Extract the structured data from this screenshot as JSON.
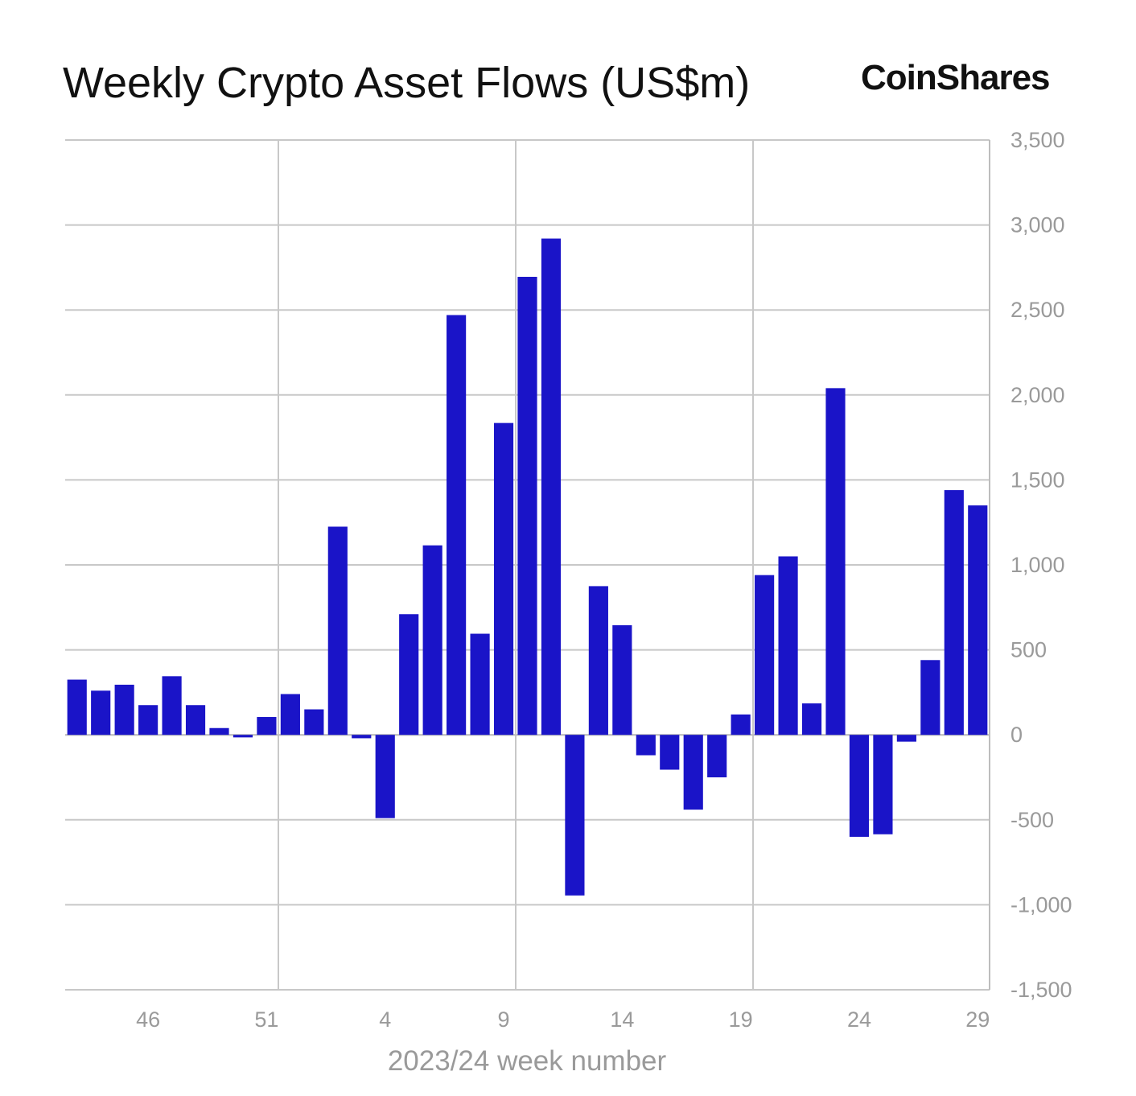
{
  "brand": {
    "logo_text": "CoinShares"
  },
  "chart_data": {
    "type": "bar",
    "title": "Weekly Crypto Asset Flows (US$m)",
    "xlabel": "2023/24 week number",
    "ylabel": "",
    "ylim": [
      -1500,
      3500
    ],
    "yticks": [
      3500,
      3000,
      2500,
      2000,
      1500,
      1000,
      500,
      0,
      -500,
      -1000,
      -1500
    ],
    "ytick_labels": [
      "3,500",
      "3,000",
      "2,500",
      "2,000",
      "1,500",
      "1,000",
      "500",
      "0",
      "-500",
      "-1,000",
      "-1,500"
    ],
    "xtick_labels": [
      "46",
      "51",
      "4",
      "9",
      "14",
      "19",
      "24",
      "29"
    ],
    "x_axis_side": "bottom",
    "y_axis_side": "right",
    "grid": true,
    "bar_color": "#1a14c8",
    "categories": [
      "43",
      "44",
      "45",
      "46",
      "47",
      "48",
      "49",
      "50",
      "51",
      "52",
      "1",
      "2",
      "3",
      "4",
      "5",
      "6",
      "7",
      "8",
      "9",
      "10",
      "11",
      "12",
      "13",
      "14",
      "15",
      "16",
      "17",
      "18",
      "19",
      "20",
      "21",
      "22",
      "23",
      "24",
      "25",
      "26",
      "27",
      "28",
      "29"
    ],
    "values": [
      325,
      260,
      295,
      175,
      345,
      175,
      40,
      -15,
      105,
      240,
      150,
      1225,
      -20,
      -490,
      710,
      1115,
      2470,
      595,
      1835,
      2695,
      2920,
      -945,
      875,
      645,
      -120,
      -205,
      -440,
      -250,
      120,
      940,
      1050,
      185,
      2040,
      -600,
      -585,
      -40,
      440,
      1440,
      1350
    ]
  }
}
